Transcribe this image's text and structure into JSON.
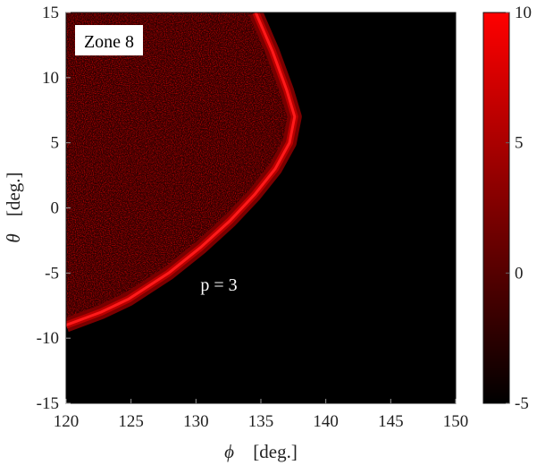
{
  "chart_data": {
    "type": "heatmap",
    "xlabel_symbol": "ϕ",
    "xlabel_unit": "[deg.]",
    "ylabel_symbol": "θ",
    "ylabel_unit": "[deg.]",
    "xlim": [
      120,
      150
    ],
    "ylim": [
      -15,
      15
    ],
    "x_ticks": [
      120,
      125,
      130,
      135,
      140,
      145,
      150
    ],
    "y_ticks": [
      -15,
      -10,
      -5,
      0,
      5,
      10,
      15
    ],
    "colorbar": {
      "range": [
        -5,
        10
      ],
      "ticks": [
        -5,
        0,
        5,
        10
      ],
      "colormap": [
        "#000000",
        "#ff0000"
      ]
    },
    "background_color": "#000000",
    "annotations": {
      "zone_label": "Zone 8",
      "p_label": "p = 3"
    },
    "boundary": [
      {
        "theta": 15,
        "phi": 134.6
      },
      {
        "theta": 12,
        "phi": 135.9
      },
      {
        "theta": 9,
        "phi": 137.0
      },
      {
        "theta": 7,
        "phi": 137.6
      },
      {
        "theta": 5,
        "phi": 137.2
      },
      {
        "theta": 3,
        "phi": 136.1
      },
      {
        "theta": 1,
        "phi": 134.5
      },
      {
        "theta": -1,
        "phi": 132.6
      },
      {
        "theta": -3,
        "phi": 130.4
      },
      {
        "theta": -5,
        "phi": 127.9
      },
      {
        "theta": -7,
        "phi": 124.8
      },
      {
        "theta": -8,
        "phi": 122.7
      },
      {
        "theta": -9,
        "phi": 120.0
      }
    ]
  }
}
